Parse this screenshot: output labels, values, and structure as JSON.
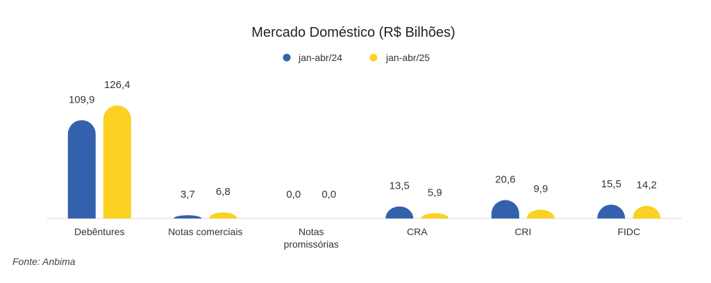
{
  "chart_data": {
    "type": "bar",
    "title": "Mercado Doméstico (R$ Bilhões)",
    "categories": [
      "Debêntures",
      "Notas comerciais",
      "Notas promissórias",
      "CRA",
      "CRI",
      "FIDC"
    ],
    "series": [
      {
        "name": "jan-abr/24",
        "values": [
          109.9,
          3.7,
          0.0,
          13.5,
          20.6,
          15.5
        ],
        "labels": [
          "109,9",
          "3,7",
          "0,0",
          "13,5",
          "20,6",
          "15,5"
        ],
        "color": "#3461AD"
      },
      {
        "name": "jan-abr/25",
        "values": [
          126.4,
          6.8,
          0.0,
          5.9,
          9.9,
          14.2
        ],
        "labels": [
          "126,4",
          "6,8",
          "0,0",
          "5,9",
          "9,9",
          "14,2"
        ],
        "color": "#FBD123"
      }
    ],
    "ylim": [
      0,
      126.4
    ],
    "legend_position": "top-center",
    "grid": false,
    "bar_style": "rounded-top",
    "xlabel": "",
    "ylabel": ""
  },
  "source_note": "Fonte: Anbima"
}
